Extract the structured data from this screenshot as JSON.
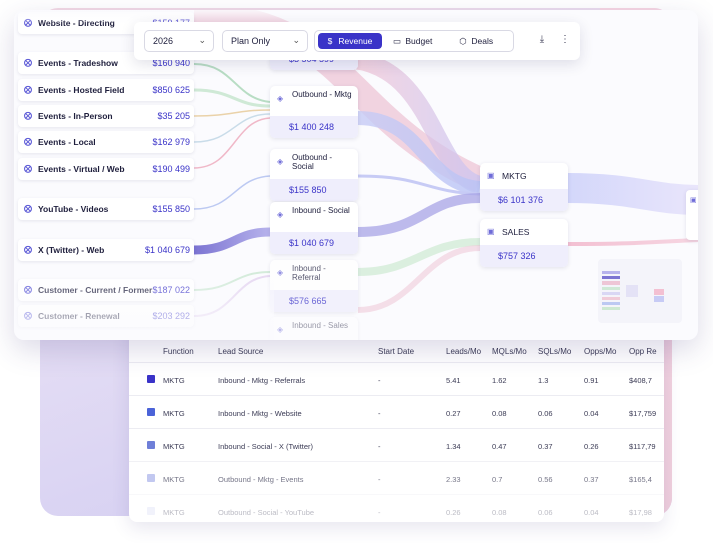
{
  "toolbar": {
    "year": "2026",
    "plan_filter": "Plan Only",
    "segments": [
      {
        "label": "Revenue",
        "icon": "dollar-icon",
        "active": true
      },
      {
        "label": "Budget",
        "icon": "wallet-icon",
        "active": false
      },
      {
        "label": "Deals",
        "icon": "box-icon",
        "active": false
      }
    ]
  },
  "sources": [
    {
      "label": "Website - Directing",
      "value": "$159 177"
    },
    {
      "label": "Events - Tradeshow",
      "value": "$160 940"
    },
    {
      "label": "Events - Hosted Field",
      "value": "$850 625"
    },
    {
      "label": "Events - In-Person",
      "value": "$35 205"
    },
    {
      "label": "Events - Local",
      "value": "$162 979"
    },
    {
      "label": "Events - Virtual / Web",
      "value": "$190 499"
    },
    {
      "label": "YouTube - Videos",
      "value": "$155 850"
    },
    {
      "label": "X (Twitter) - Web",
      "value": "$1 040 679"
    },
    {
      "label": "Customer - Current / Former",
      "value": "$187 022"
    },
    {
      "label": "Customer - Renewal",
      "value": "$203 292"
    }
  ],
  "channels": [
    {
      "label": "",
      "value": "$3 504 599"
    },
    {
      "label": "Outbound - Mktg",
      "value": "$1 400 248"
    },
    {
      "label": "Outbound - Social",
      "value": "$155 850"
    },
    {
      "label": "Inbound - Social",
      "value": "$1 040 679"
    },
    {
      "label": "Inbound - Referral",
      "value": "$576 665"
    },
    {
      "label": "Inbound - Sales",
      "value": ""
    }
  ],
  "functions": [
    {
      "label": "MKTG",
      "value": "$6 101 376"
    },
    {
      "label": "SALES",
      "value": "$757 326"
    }
  ],
  "table": {
    "headers": [
      "Function",
      "Lead Source",
      "Start Date",
      "Leads/Mo",
      "MQLs/Mo",
      "SQLs/Mo",
      "Opps/Mo",
      "Opp Re"
    ],
    "rows": [
      {
        "function": "MKTG",
        "source": "Inbound - Mktg - Referrals",
        "start": "-",
        "leads": "5.41",
        "mqls": "1.62",
        "sqls": "1.3",
        "opps": "0.91",
        "opp": "$408,7"
      },
      {
        "function": "MKTG",
        "source": "Inbound - Mktg - Website",
        "start": "-",
        "leads": "0.27",
        "mqls": "0.08",
        "sqls": "0.06",
        "opps": "0.04",
        "opp": "$17,759"
      },
      {
        "function": "MKTG",
        "source": "Inbound - Social - X (Twitter)",
        "start": "-",
        "leads": "1.34",
        "mqls": "0.47",
        "sqls": "0.37",
        "opps": "0.26",
        "opp": "$117,79"
      },
      {
        "function": "MKTG",
        "source": "Outbound - Mktg - Events",
        "start": "-",
        "leads": "2.33",
        "mqls": "0.7",
        "sqls": "0.56",
        "opps": "0.37",
        "opp": "$165,4"
      },
      {
        "function": "MKTG",
        "source": "Outbound - Social - YouTube",
        "start": "-",
        "leads": "0.26",
        "mqls": "0.08",
        "sqls": "0.06",
        "opps": "0.04",
        "opp": "$17,98"
      }
    ]
  },
  "colors": {
    "accent": "#3a33c8",
    "panel_bg": "#dcd7f2",
    "row_square": [
      "#3a33c8",
      "#4b63d8",
      "#6f7fd8",
      "#a9b2ea",
      "#d6daf4"
    ]
  }
}
